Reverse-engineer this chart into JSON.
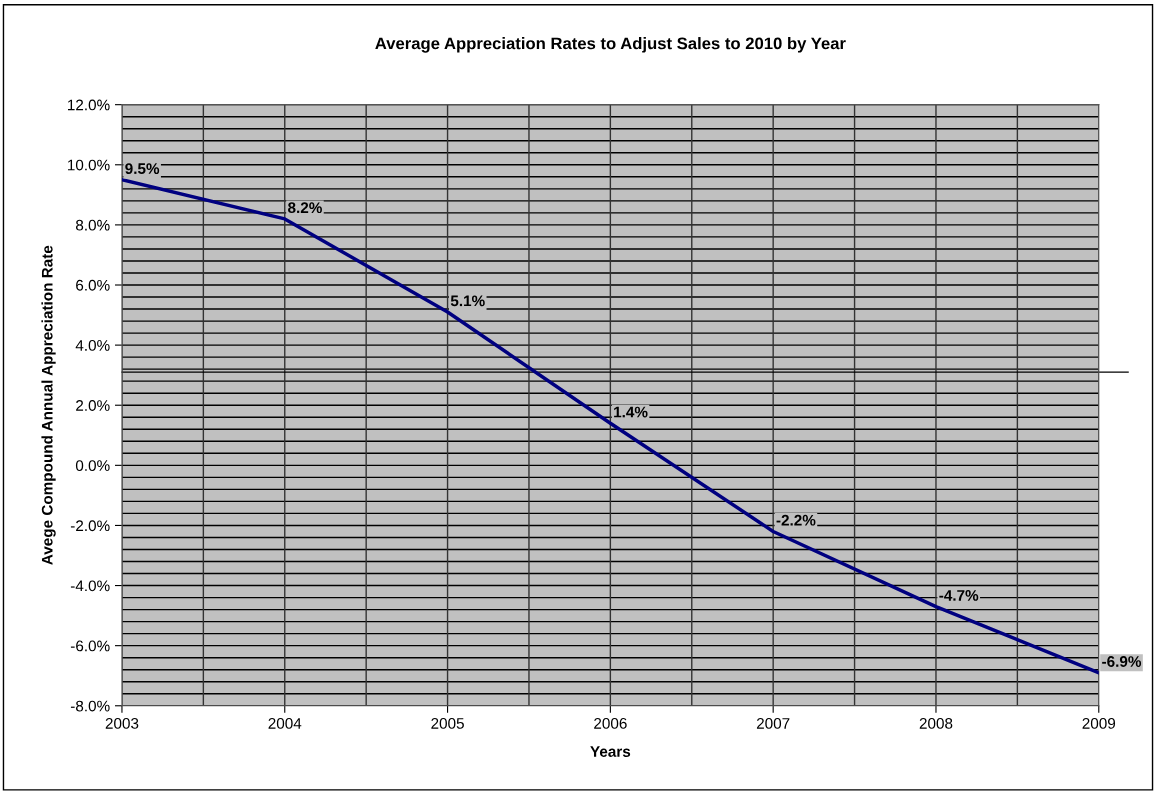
{
  "chart_data": {
    "type": "line",
    "title": "Average Appreciation Rates to Adjust Sales to 2010 by Year",
    "xlabel": "Years",
    "ylabel": "Avege Compound Annual Appreciation Rate",
    "x": [
      2003,
      2004,
      2005,
      2006,
      2007,
      2008,
      2009
    ],
    "series": [
      {
        "color": "#000080",
        "values": [
          9.5,
          8.2,
          5.1,
          1.4,
          -2.2,
          -4.7,
          -6.9
        ],
        "value_labels": [
          "9.5%",
          "8.2%",
          "5.1%",
          "1.4%",
          "-2.2%",
          "-4.7%",
          "-6.9%"
        ]
      }
    ],
    "xlim": [
      2003,
      2009
    ],
    "xticks": [
      2003,
      2004,
      2005,
      2006,
      2007,
      2008,
      2009
    ],
    "ylim": [
      -8,
      12
    ],
    "yticks": [
      {
        "value": -8,
        "label": "-8.0%"
      },
      {
        "value": -6,
        "label": "-6.0%"
      },
      {
        "value": -4,
        "label": "-4.0%"
      },
      {
        "value": -2,
        "label": "-2.0%"
      },
      {
        "value": 0,
        "label": "0.0%"
      },
      {
        "value": 2,
        "label": "2.0%"
      },
      {
        "value": 4,
        "label": "4.0%"
      },
      {
        "value": 6,
        "label": "6.0%"
      },
      {
        "value": 8,
        "label": "8.0%"
      },
      {
        "value": 10,
        "label": "10.0%"
      },
      {
        "value": 12,
        "label": "12.0%"
      }
    ],
    "ref_lines": [
      {
        "axis": "y",
        "value": 3.1,
        "color": "#000000"
      }
    ],
    "grid": true,
    "marker": "none",
    "line_style": "solid"
  }
}
